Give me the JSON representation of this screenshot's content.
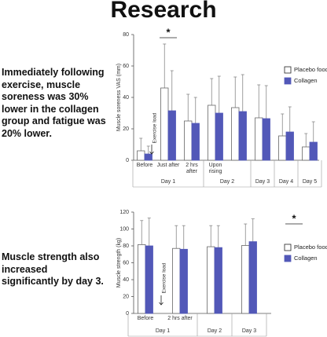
{
  "title": "Research",
  "captions": [
    "Immediately following exercise, muscle soreness was 30% lower in the collagen group and fatigue was 20% lower.",
    "Muscle strength also increased significantly by day 3."
  ],
  "chart_data": [
    {
      "type": "bar",
      "y_label": "Muscle soreness VAS (mm)",
      "ylim": [
        0,
        80
      ],
      "yticks": [
        0,
        20,
        40,
        60,
        80
      ],
      "categories": [
        "Before",
        "Just after",
        "2 hrs after",
        "Upon rising",
        null,
        null,
        null,
        null
      ],
      "groups": [
        {
          "label": "Day 1",
          "size": 3
        },
        {
          "label": "Day 2",
          "size": 2
        },
        {
          "label": "Day 3",
          "size": 1
        },
        {
          "label": "Day 4",
          "size": 1
        },
        {
          "label": "Day 5",
          "size": 1
        }
      ],
      "series": [
        {
          "name": "Placebo food",
          "color": "#ffffff",
          "edge_color": "#666666",
          "values": [
            6,
            46,
            25,
            35,
            33.5,
            27,
            15.5,
            8.5
          ],
          "errors": [
            8,
            28,
            17,
            17,
            19.5,
            21,
            14,
            8.5
          ]
        },
        {
          "name": "Collagen",
          "color": "#5258b8",
          "edge_color": "#5258b8",
          "values": [
            4,
            31.5,
            23.5,
            30,
            31,
            26.5,
            18,
            11.5
          ],
          "errors": [
            5,
            25.5,
            16.5,
            23.5,
            23.5,
            21,
            16,
            13
          ]
        }
      ],
      "annotations": [
        "*",
        "Exercise load"
      ]
    },
    {
      "type": "bar",
      "y_label": "Muscle strength (kg)",
      "ylim": [
        0,
        120
      ],
      "yticks": [
        0,
        20,
        40,
        60,
        80,
        100,
        120
      ],
      "categories": [
        "Before",
        "2 hrs after",
        null,
        null
      ],
      "groups": [
        {
          "label": "Day 1",
          "size": 2
        },
        {
          "label": "Day 2",
          "size": 1
        },
        {
          "label": "Day 3",
          "size": 1
        }
      ],
      "series": [
        {
          "name": "Placebo food",
          "color": "#ffffff",
          "edge_color": "#666666",
          "values": [
            81.5,
            77,
            79,
            80.5
          ],
          "errors": [
            28.5,
            27,
            25,
            25.5
          ]
        },
        {
          "name": "Collagen",
          "color": "#5258b8",
          "edge_color": "#5258b8",
          "values": [
            80,
            76,
            78,
            85
          ],
          "errors": [
            33,
            28,
            26,
            27
          ]
        }
      ],
      "annotations": [
        "*",
        "Exercise load"
      ]
    }
  ]
}
